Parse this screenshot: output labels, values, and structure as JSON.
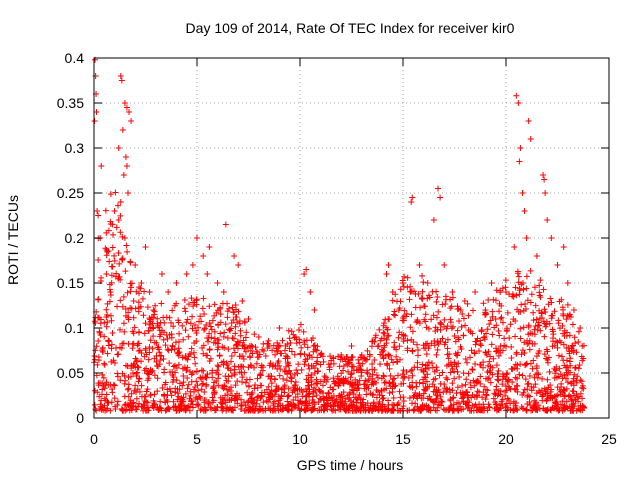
{
  "chart_data": {
    "type": "scatter",
    "title": "Day 109 of 2014, Rate Of TEC Index for receiver kir0",
    "xlabel": "GPS time / hours",
    "ylabel": "ROTI / TECUs",
    "xlim": [
      0,
      25
    ],
    "ylim": [
      0,
      0.4
    ],
    "xticks": [
      "0",
      "5",
      "10",
      "15",
      "20",
      "25"
    ],
    "yticks": [
      "0",
      "0.05",
      "0.1",
      "0.15",
      "0.2",
      "0.25",
      "0.3",
      "0.35",
      "0.4"
    ],
    "grid": true,
    "marker": "+",
    "color": "#ff0000",
    "density_profile": {
      "description_hours": [
        0,
        1,
        2,
        3,
        4,
        5,
        6,
        7,
        8,
        9,
        10,
        11,
        12,
        13,
        14,
        15,
        16,
        17,
        18,
        19,
        20,
        21,
        22,
        23,
        23.8
      ],
      "typical_upper_roti": [
        0.2,
        0.25,
        0.15,
        0.12,
        0.12,
        0.13,
        0.12,
        0.12,
        0.08,
        0.08,
        0.1,
        0.07,
        0.06,
        0.06,
        0.1,
        0.15,
        0.15,
        0.13,
        0.12,
        0.12,
        0.15,
        0.16,
        0.14,
        0.12,
        0.08
      ]
    },
    "series": [
      {
        "values": [
          [
            0.05,
            0.398
          ],
          [
            0.08,
            0.38
          ],
          [
            0.1,
            0.36
          ],
          [
            0.03,
            0.33
          ],
          [
            0.12,
            0.34
          ],
          [
            0.15,
            0.23
          ],
          [
            0.2,
            0.225
          ],
          [
            0.3,
            0.2
          ],
          [
            1.3,
            0.38
          ],
          [
            1.35,
            0.375
          ],
          [
            1.5,
            0.35
          ],
          [
            1.6,
            0.345
          ],
          [
            1.7,
            0.34
          ],
          [
            1.8,
            0.33
          ],
          [
            1.4,
            0.32
          ],
          [
            1.2,
            0.3
          ],
          [
            1.55,
            0.29
          ],
          [
            1.6,
            0.28
          ],
          [
            1.45,
            0.27
          ],
          [
            1.65,
            0.25
          ],
          [
            1.3,
            0.24
          ],
          [
            1.0,
            0.23
          ],
          [
            1.2,
            0.22
          ],
          [
            1.5,
            0.2
          ],
          [
            0.35,
            0.28
          ],
          [
            0.6,
            0.16
          ],
          [
            0.8,
            0.14
          ],
          [
            2.0,
            0.17
          ],
          [
            2.5,
            0.19
          ],
          [
            2.3,
            0.15
          ],
          [
            2.7,
            0.14
          ],
          [
            3.3,
            0.16
          ],
          [
            3.6,
            0.14
          ],
          [
            4.0,
            0.15
          ],
          [
            4.5,
            0.16
          ],
          [
            5.0,
            0.2
          ],
          [
            4.8,
            0.17
          ],
          [
            5.3,
            0.18
          ],
          [
            5.5,
            0.16
          ],
          [
            5.6,
            0.19
          ],
          [
            6.0,
            0.15
          ],
          [
            6.3,
            0.14
          ],
          [
            6.4,
            0.215
          ],
          [
            6.8,
            0.18
          ],
          [
            7.0,
            0.17
          ],
          [
            7.2,
            0.13
          ],
          [
            7.5,
            0.11
          ],
          [
            8.0,
            0.09
          ],
          [
            8.5,
            0.08
          ],
          [
            9.0,
            0.1
          ],
          [
            9.3,
            0.08
          ],
          [
            9.8,
            0.09
          ],
          [
            10.2,
            0.16
          ],
          [
            10.3,
            0.165
          ],
          [
            10.5,
            0.14
          ],
          [
            10.7,
            0.12
          ],
          [
            11.0,
            0.07
          ],
          [
            11.5,
            0.06
          ],
          [
            12.0,
            0.07
          ],
          [
            12.5,
            0.08
          ],
          [
            13.0,
            0.07
          ],
          [
            13.5,
            0.06
          ],
          [
            14.0,
            0.07
          ],
          [
            14.2,
            0.16
          ],
          [
            14.3,
            0.17
          ],
          [
            14.5,
            0.14
          ],
          [
            14.8,
            0.12
          ],
          [
            15.0,
            0.15
          ],
          [
            15.4,
            0.24
          ],
          [
            15.45,
            0.245
          ],
          [
            15.8,
            0.17
          ],
          [
            16.2,
            0.15
          ],
          [
            16.5,
            0.22
          ],
          [
            16.7,
            0.255
          ],
          [
            16.8,
            0.245
          ],
          [
            17.0,
            0.17
          ],
          [
            17.4,
            0.14
          ],
          [
            17.8,
            0.12
          ],
          [
            18.0,
            0.13
          ],
          [
            18.5,
            0.14
          ],
          [
            19.0,
            0.12
          ],
          [
            19.3,
            0.15
          ],
          [
            19.5,
            0.11
          ],
          [
            20.0,
            0.14
          ],
          [
            20.4,
            0.19
          ],
          [
            20.5,
            0.358
          ],
          [
            20.6,
            0.35
          ],
          [
            20.7,
            0.3
          ],
          [
            20.65,
            0.285
          ],
          [
            20.8,
            0.25
          ],
          [
            20.9,
            0.23
          ],
          [
            21.1,
            0.33
          ],
          [
            21.2,
            0.31
          ],
          [
            21.0,
            0.2
          ],
          [
            21.5,
            0.18
          ],
          [
            21.8,
            0.27
          ],
          [
            21.85,
            0.265
          ],
          [
            21.9,
            0.25
          ],
          [
            22.0,
            0.22
          ],
          [
            22.2,
            0.2
          ],
          [
            22.5,
            0.17
          ],
          [
            22.8,
            0.19
          ],
          [
            23.0,
            0.15
          ],
          [
            23.3,
            0.12
          ],
          [
            23.6,
            0.1
          ],
          [
            23.7,
            0.08
          ]
        ]
      }
    ]
  }
}
